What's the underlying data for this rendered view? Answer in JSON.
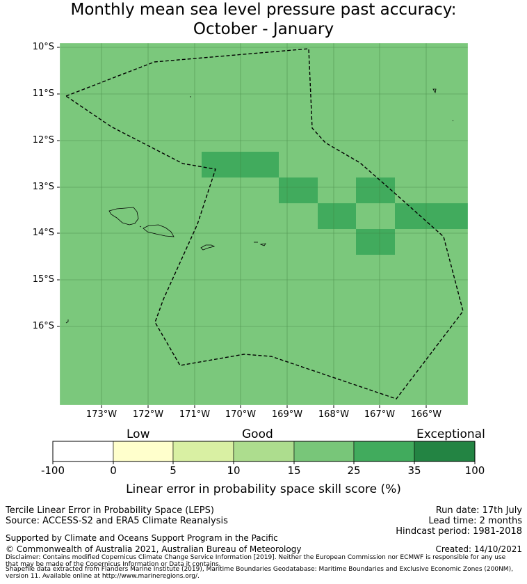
{
  "title": {
    "line1": "Monthly mean sea level pressure past accuracy:",
    "line2": "October - January"
  },
  "map": {
    "latitude_labels": [
      "10°S",
      "11°S",
      "12°S",
      "13°S",
      "14°S",
      "15°S",
      "16°S"
    ],
    "longitude_labels": [
      "173°W",
      "172°W",
      "171°W",
      "170°W",
      "169°W",
      "168°W",
      "167°W",
      "166°W"
    ],
    "background_score_band": "15 to 25",
    "highlighted_score_band": "25 to 35",
    "colors": {
      "ocean_cell": "#7bc87c",
      "highlight_cell": "#41ab5d",
      "grid": "#3f7f3f",
      "boundary": "#000000"
    }
  },
  "legend": {
    "categories": [
      "Low",
      "Good",
      "Exceptional"
    ],
    "ticks": [
      "-100",
      "0",
      "5",
      "10",
      "15",
      "25",
      "35",
      "100"
    ],
    "colors": [
      "#ffffff",
      "#ffffcc",
      "#d9f0a3",
      "#addd8e",
      "#78c679",
      "#41ab5d",
      "#238443"
    ],
    "label": "Linear error in probability space skill score (%)"
  },
  "footer": {
    "method": "Tercile Linear Error in Probability Space (LEPS)",
    "source": "Source: ACCESS-S2 and ERA5 Climate Reanalysis",
    "run_date": "Run date: 17th July",
    "lead_time": "Lead time: 2 months",
    "hindcast": "Hindcast period: 1981-2018",
    "support": "Supported by Climate and Oceans Support Program in the Pacific",
    "copyright": "© Commonwealth of Australia 2021, Australian Bureau of Meteorology",
    "created": "Created: 14/10/2021",
    "disclaimer1": "Disclaimer: Contains modified Copernicus Climate Change Service Information [2019]. Neither the European Commission nor ECMWF is responsible for any use",
    "disclaimer2": "that may be made of the Copernicus Information or Data it contains.",
    "shapefile1": "Shapefile data extracted from Flanders Marine Institute (2019), Maritime Boundaries Geodatabase: Maritime Boundaries and Exclusive Economic Zones (200NM),",
    "shapefile2": "version 11. Available online at http://www.marineregions.org/."
  }
}
